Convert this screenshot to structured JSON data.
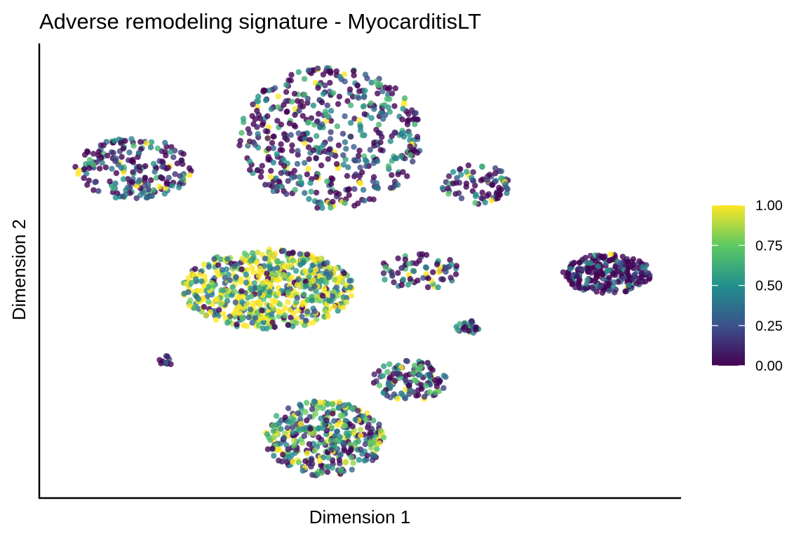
{
  "chart_data": {
    "type": "scatter",
    "title": "Adverse remodeling signature - MyocarditisLT",
    "xlabel": "Dimension 1",
    "ylabel": "Dimension 2",
    "x_ticks": [],
    "y_ticks": [],
    "xlim": [
      0,
      100
    ],
    "ylim": [
      0,
      100
    ],
    "grid": false,
    "legend_position": "right",
    "colorbar": {
      "min": 0,
      "max": 1,
      "ticks": [
        "0.00",
        "0.25",
        "0.50",
        "0.75",
        "1.00"
      ],
      "colormap": "viridis",
      "stops": [
        "#440154",
        "#3b528b",
        "#21908d",
        "#5dc963",
        "#fde725"
      ]
    },
    "clusters": [
      {
        "id": "top-left-arc",
        "x": [
          5,
          24
        ],
        "y": [
          66,
          80
        ],
        "points": 200,
        "mean_score": 0.25
      },
      {
        "id": "top-center",
        "x": [
          31,
          60
        ],
        "y": [
          64,
          96
        ],
        "points": 500,
        "mean_score": 0.25
      },
      {
        "id": "top-right-tail",
        "x": [
          63,
          74
        ],
        "y": [
          65,
          74
        ],
        "points": 80,
        "mean_score": 0.3
      },
      {
        "id": "center-left-big",
        "x": [
          22,
          49
        ],
        "y": [
          37,
          55
        ],
        "points": 650,
        "mean_score": 0.68
      },
      {
        "id": "center-small",
        "x": [
          53,
          66
        ],
        "y": [
          46,
          54
        ],
        "points": 70,
        "mean_score": 0.25
      },
      {
        "id": "right-cluster",
        "x": [
          82,
          96
        ],
        "y": [
          45,
          54
        ],
        "points": 250,
        "mean_score": 0.12
      },
      {
        "id": "small-middle",
        "x": [
          65,
          69
        ],
        "y": [
          36,
          39
        ],
        "points": 30,
        "mean_score": 0.35
      },
      {
        "id": "tiny-left",
        "x": [
          18,
          21
        ],
        "y": [
          29,
          31
        ],
        "points": 12,
        "mean_score": 0.05
      },
      {
        "id": "bottom-right-arm",
        "x": [
          52,
          64
        ],
        "y": [
          21,
          30
        ],
        "points": 120,
        "mean_score": 0.3
      },
      {
        "id": "bottom-cluster",
        "x": [
          35,
          54
        ],
        "y": [
          4,
          21
        ],
        "points": 380,
        "mean_score": 0.45
      }
    ]
  }
}
